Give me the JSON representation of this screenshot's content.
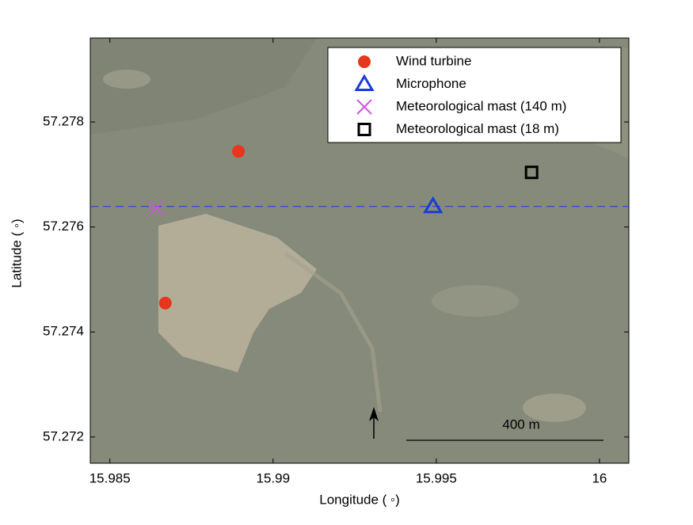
{
  "chart_data": {
    "type": "scatter",
    "x_label": "Longitude ( ◦)",
    "y_label": "Latitude ( ◦)",
    "xlim": [
      15.9844,
      16.0009
    ],
    "ylim": [
      57.2715,
      57.2796
    ],
    "xticks": [
      15.985,
      15.99,
      15.995,
      16
    ],
    "yticks": [
      57.272,
      57.274,
      57.276,
      57.278
    ],
    "series": [
      {
        "name": "Wind turbine",
        "color": "#e8361e",
        "marker": "circle",
        "x": [
          15.98894,
          15.9867
        ],
        "values": [
          57.27744,
          57.27455
        ]
      },
      {
        "name": "Microphone",
        "color": "#1a3cd8",
        "marker": "triangle",
        "x": [
          15.9949
        ],
        "values": [
          57.27639
        ]
      },
      {
        "name": "Meteorological mast (140 m)",
        "color": "#cc55dd",
        "marker": "cross",
        "x": [
          15.98641
        ],
        "values": [
          57.27636
        ]
      },
      {
        "name": "Meteorological mast (18 m)",
        "color": "#000000",
        "marker": "square",
        "x": [
          15.99792
        ],
        "values": [
          57.27704
        ]
      }
    ],
    "reference_line": {
      "y": 57.27639,
      "color": "#1a3cd8"
    },
    "scale_bar_label": "400 m",
    "legend": "upper right"
  }
}
